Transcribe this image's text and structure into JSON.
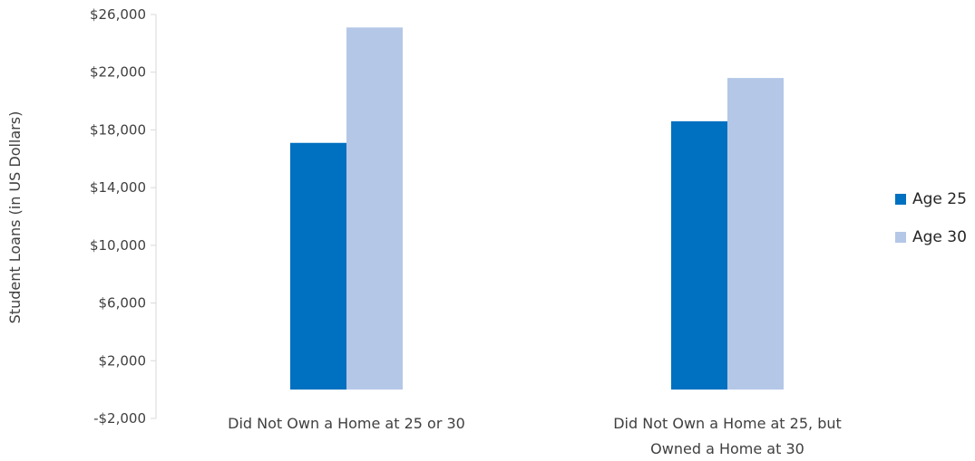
{
  "chart_data": {
    "type": "bar",
    "title": "",
    "xlabel": "",
    "ylabel": "Student Loans (in US Dollars)",
    "ylim": [
      -2000,
      26000
    ],
    "yticks": [
      -2000,
      2000,
      6000,
      10000,
      14000,
      18000,
      22000,
      26000
    ],
    "ytick_labels": [
      "-$2,000",
      "$2,000",
      "$6,000",
      "$10,000",
      "$14,000",
      "$18,000",
      "$22,000",
      "$26,000"
    ],
    "categories": [
      [
        "Did Not Own a Home at 25 or 30"
      ],
      [
        "Did Not Own a Home at 25, but",
        "Owned a Home at 30"
      ]
    ],
    "series": [
      {
        "name": "Age 25",
        "color": "#0070c0",
        "values": [
          17100,
          18600
        ]
      },
      {
        "name": "Age 30",
        "color": "#b4c7e7",
        "values": [
          25100,
          21600
        ]
      }
    ],
    "grid": false,
    "legend_position": "right"
  }
}
